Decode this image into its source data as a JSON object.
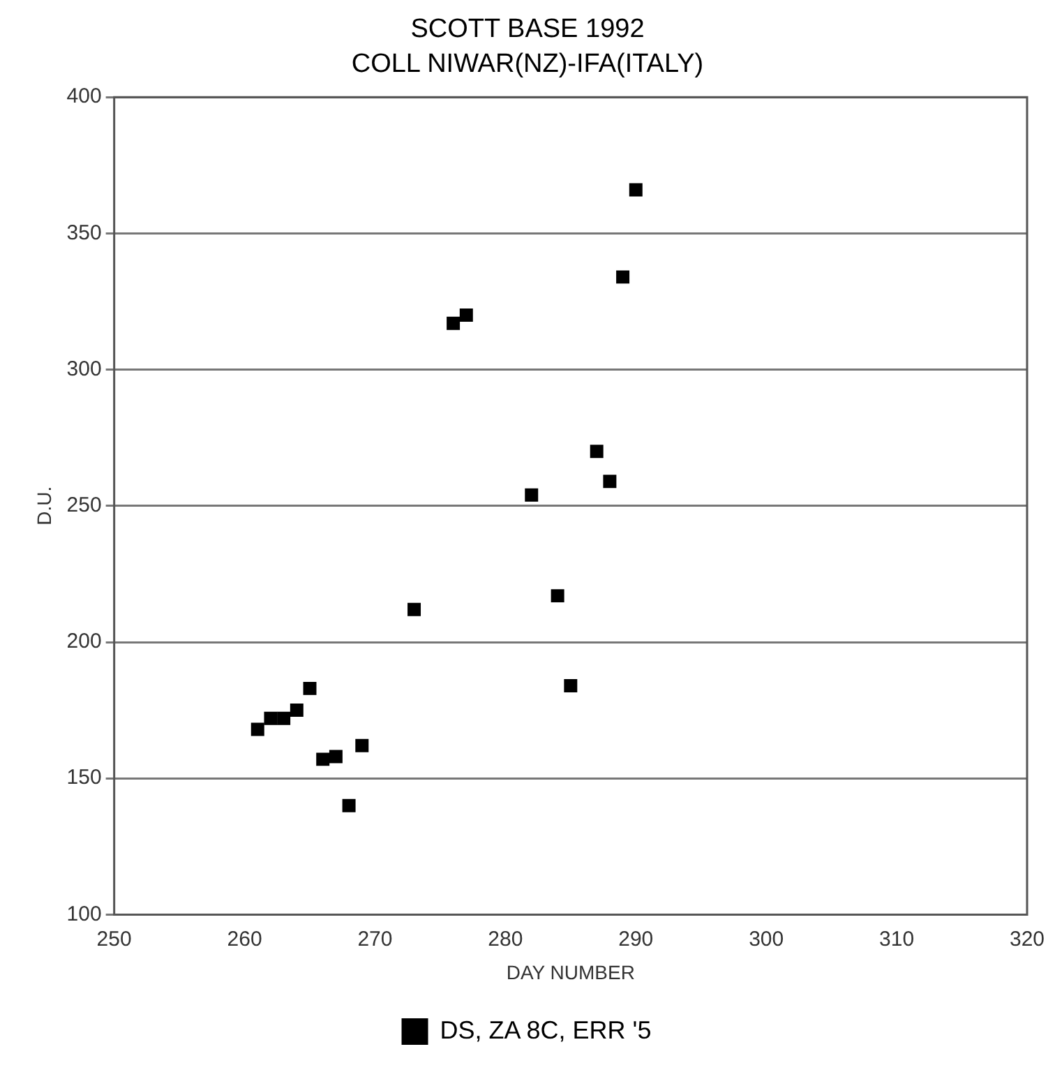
{
  "chart_data": {
    "type": "scatter",
    "title": "SCOTT BASE 1992",
    "subtitle": "COLL NIWAR(NZ)-IFA(ITALY)",
    "xlabel": "DAY NUMBER",
    "ylabel": "D.U.",
    "series": [
      {
        "name": "DS, ZA 8C, ERR '5",
        "color": "#000000",
        "x": [
          261,
          262,
          263,
          264,
          265,
          266,
          267,
          268,
          269,
          273,
          276,
          277,
          282,
          284,
          285,
          287,
          288,
          289,
          290
        ],
        "values": [
          168,
          172,
          172,
          175,
          183,
          157,
          158,
          140,
          162,
          212,
          317,
          320,
          254,
          217,
          184,
          270,
          259,
          334,
          366
        ]
      }
    ],
    "xlim": [
      250,
      320
    ],
    "xticks": [
      250,
      260,
      270,
      280,
      290,
      300,
      310,
      320
    ],
    "ylim": [
      100,
      400
    ],
    "yticks": [
      100,
      150,
      200,
      250,
      300,
      350,
      400
    ],
    "grid": "y",
    "legend": "bottom",
    "marker": "square"
  }
}
